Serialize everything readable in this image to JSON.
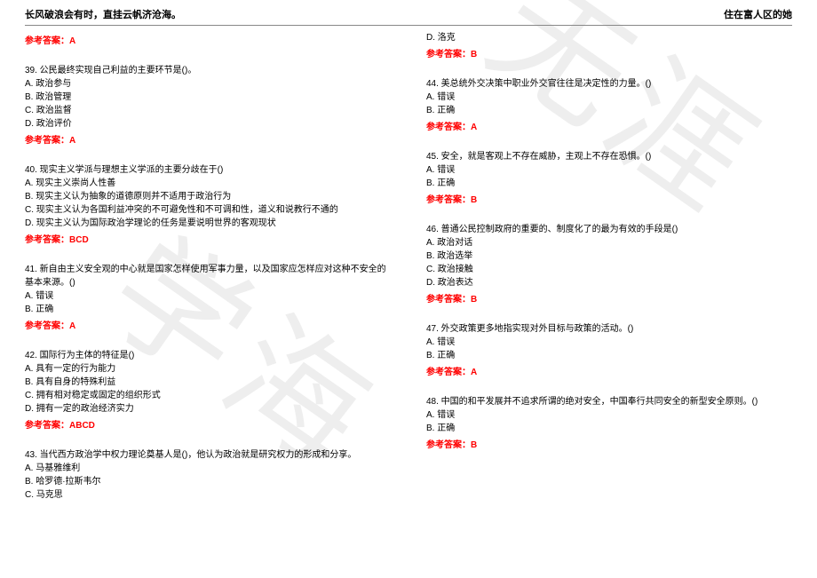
{
  "header": {
    "left": "长风破浪会有时，直挂云帆济沧海。",
    "right": "住在富人区的她"
  },
  "watermark": {
    "text1": "学海",
    "text2": "无涯"
  },
  "left_column": {
    "answer_top": "参考答案：A",
    "q39": {
      "text": "39. 公民最终实现自己利益的主要环节是()。",
      "a": "A. 政治参与",
      "b": "B. 政治管理",
      "c": "C. 政治监督",
      "d": "D. 政治评价",
      "answer": "参考答案：A"
    },
    "q40": {
      "text": "40. 现实主义学派与理想主义学派的主要分歧在于()",
      "a": "A. 现实主义崇尚人性善",
      "b": "B. 现实主义认为抽象的道德原则并不适用于政治行为",
      "c": "C. 现实主义认为各国利益冲突的不可避免性和不可调和性，道义和说教行不通的",
      "d": "D. 现实主义认为国际政治学理论的任务是要说明世界的客观现状",
      "answer": "参考答案：BCD"
    },
    "q41": {
      "text": "41. 新自由主义安全观的中心就是国家怎样使用军事力量，以及国家应怎样应对这种不安全的基本来源。()",
      "a": "A. 错误",
      "b": "B. 正确",
      "answer": "参考答案：A"
    },
    "q42": {
      "text": "42. 国际行为主体的特征是()",
      "a": "A. 具有一定的行为能力",
      "b": "B. 具有自身的特殊利益",
      "c": "C. 拥有相对稳定或固定的组织形式",
      "d": "D. 拥有一定的政治经济实力",
      "answer": "参考答案：ABCD"
    },
    "q43": {
      "text": "43. 当代西方政治学中权力理论奠基人是()，他认为政治就是研究权力的形成和分享。",
      "a": "A. 马基雅维利",
      "b": "B. 哈罗德·拉斯韦尔",
      "c": "C. 马克思"
    }
  },
  "right_column": {
    "q43d": "D. 洛克",
    "answer_top": "参考答案：B",
    "q44": {
      "text": "44. 美总统外交决策中职业外交官往往是决定性的力量。()",
      "a": "A. 错误",
      "b": "B. 正确",
      "answer": "参考答案：A"
    },
    "q45": {
      "text": "45. 安全，就是客观上不存在威胁，主观上不存在恐惧。()",
      "a": "A. 错误",
      "b": "B. 正确",
      "answer": "参考答案：B"
    },
    "q46": {
      "text": "46. 普通公民控制政府的重要的、制度化了的最为有效的手段是()",
      "a": "A. 政治对话",
      "b": "B. 政治选举",
      "c": "C. 政治接触",
      "d": "D. 政治表达",
      "answer": "参考答案：B"
    },
    "q47": {
      "text": "47. 外交政策更多地指实现对外目标与政策的活动。()",
      "a": "A. 错误",
      "b": "B. 正确",
      "answer": "参考答案：A"
    },
    "q48": {
      "text": "48. 中国的和平发展并不追求所谓的绝对安全，中国奉行共同安全的新型安全原则。()",
      "a": "A. 错误",
      "b": "B. 正确",
      "answer": "参考答案：B"
    }
  }
}
